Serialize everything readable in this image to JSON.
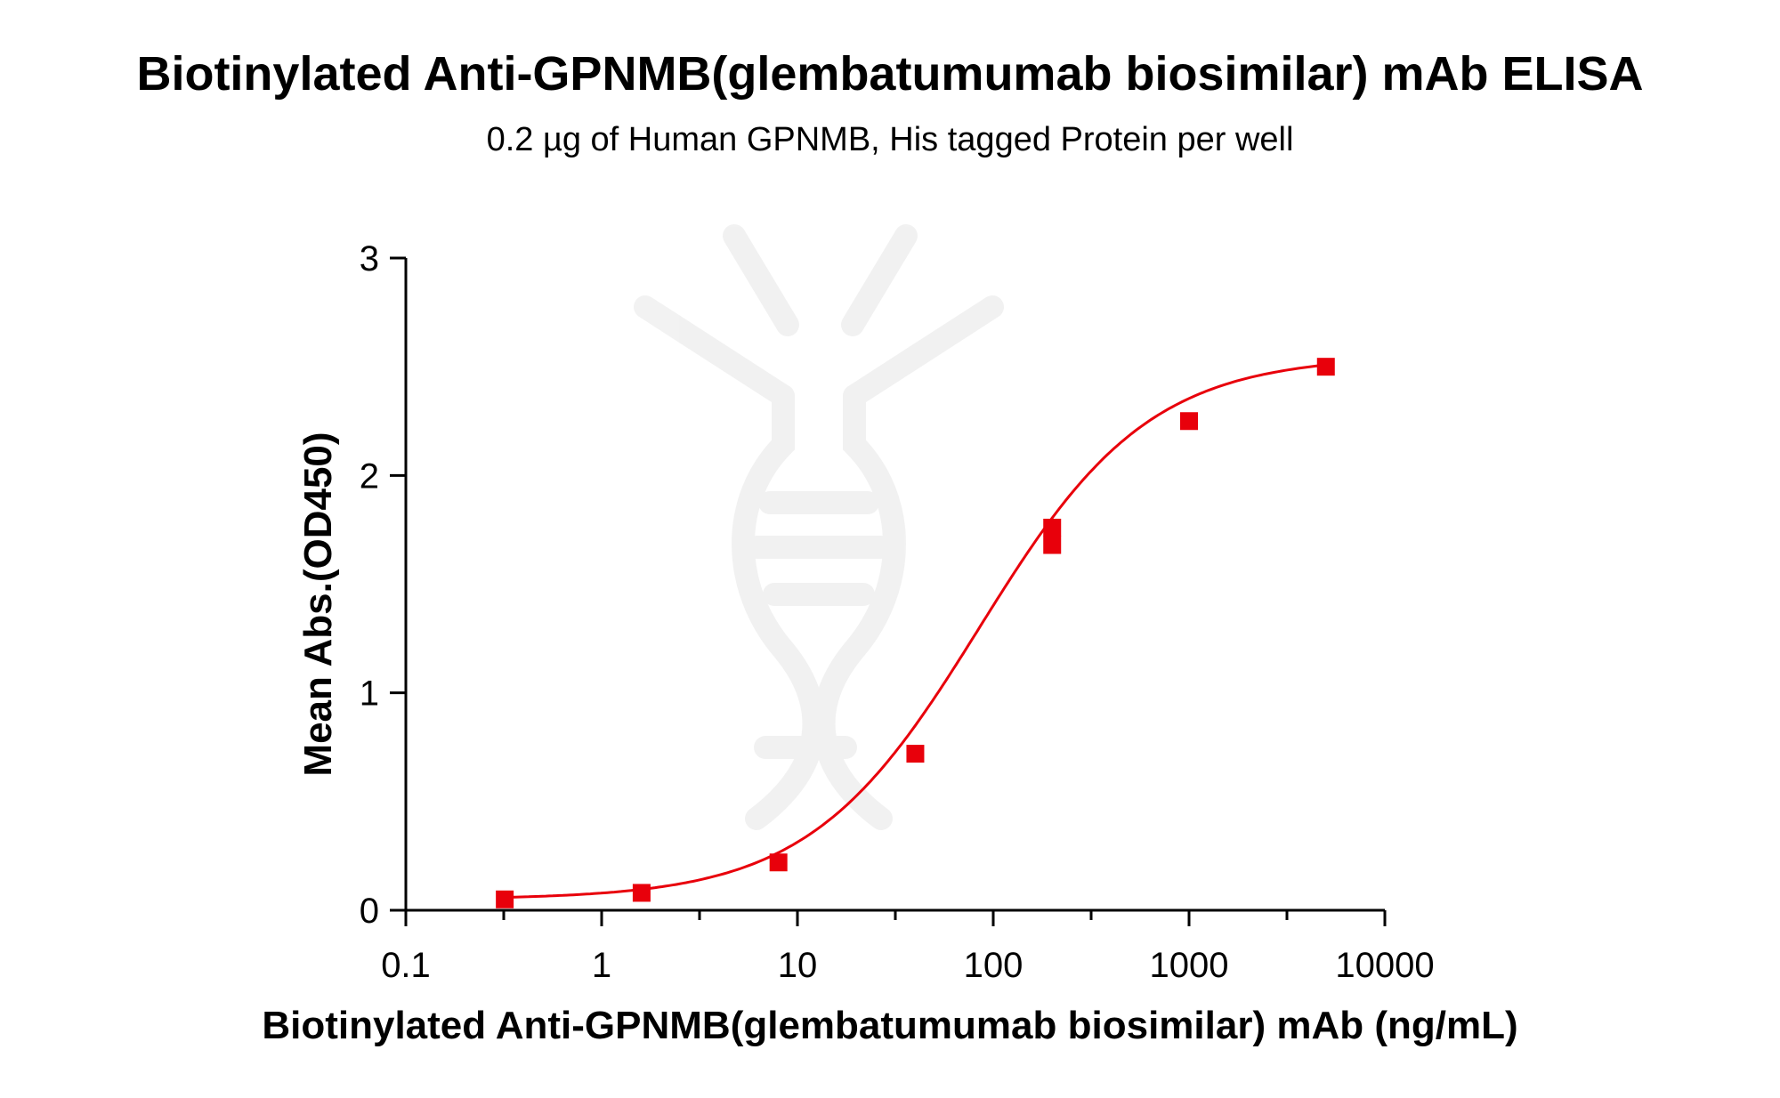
{
  "chart_data": {
    "type": "scatter",
    "title": "Biotinylated Anti-GPNMB(glembatumumab biosimilar) mAb ELISA",
    "subtitle": "0.2 µg of Human GPNMB, His tagged Protein per well",
    "xlabel": "Biotinylated Anti-GPNMB(glembatumumab biosimilar) mAb (ng/mL)",
    "ylabel": "Mean Abs.(OD450)",
    "x_scale": "log",
    "xlim": [
      0.1,
      10000
    ],
    "ylim": [
      0,
      3
    ],
    "x_ticks": [
      "0.1",
      "1",
      "10",
      "100",
      "1000",
      "10000"
    ],
    "y_ticks": [
      "0",
      "1",
      "2",
      "3"
    ],
    "series": [
      {
        "color": "#e8000b",
        "marker": "square",
        "points": [
          {
            "x": 0.32,
            "y": 0.05
          },
          {
            "x": 1.6,
            "y": 0.08
          },
          {
            "x": 8,
            "y": 0.22
          },
          {
            "x": 40,
            "y": 0.72
          },
          {
            "x": 200,
            "y": 1.68
          },
          {
            "x": 200,
            "y": 1.76
          },
          {
            "x": 1000,
            "y": 2.25
          },
          {
            "x": 5000,
            "y": 2.5
          }
        ],
        "fit_curve": {
          "model": "4PL",
          "bottom": 0.05,
          "top": 2.55,
          "ec50": 85,
          "hill": 1.0
        }
      }
    ]
  }
}
